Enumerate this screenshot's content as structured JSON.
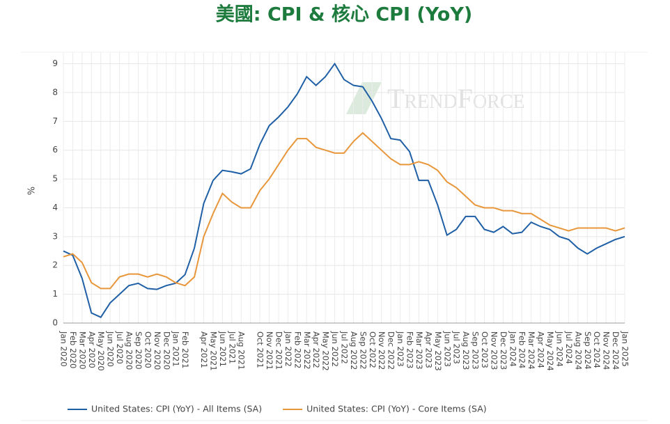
{
  "chart_data": {
    "type": "line",
    "title": "美國: CPI & 核心 CPI (YoY)",
    "y_label": "%",
    "watermark": "TrendForce",
    "categories": [
      "Jan 2020",
      "Feb 2020",
      "Mar 2020",
      "Apr 2020",
      "May 2020",
      "Jun 2020",
      "Jul 2020",
      "Aug 2020",
      "Sep 2020",
      "Oct 2020",
      "Nov 2020",
      "Dec 2020",
      "Jan 2021",
      "Feb 2021",
      null,
      "Apr 2021",
      "May 2021",
      "Jun 2021",
      "Jul 2021",
      "Aug 2021",
      null,
      "Oct 2021",
      "Nov 2021",
      "Dec 2021",
      "Jan 2022",
      "Feb 2022",
      "Mar 2022",
      "Apr 2022",
      "May 2022",
      "Jun 2022",
      "Jul 2022",
      "Aug 2022",
      "Sep 2022",
      "Oct 2022",
      "Nov 2022",
      "Dec 2022",
      "Jan 2023",
      "Feb 2023",
      "Mar 2023",
      "Apr 2023",
      "May 2023",
      "Jun 2023",
      "Jul 2023",
      "Aug 2023",
      "Sep 2023",
      "Oct 2023",
      "Nov 2023",
      "Dec 2023",
      "Jan 2024",
      "Feb 2024",
      "Mar 2024",
      "Apr 2024",
      "May 2024",
      "Jun 2024",
      "Jul 2024",
      "Aug 2024",
      "Sep 2024",
      "Oct 2024",
      "Nov 2024",
      "Dec 2024",
      "Jan 2025"
    ],
    "series": [
      {
        "name": "United States: CPI (YoY) - All Items (SA)",
        "color": "#1f5fa6",
        "values": [
          2.5,
          2.35,
          1.55,
          0.35,
          0.2,
          0.7,
          1.0,
          1.3,
          1.38,
          1.2,
          1.17,
          1.3,
          1.38,
          1.68,
          2.6,
          4.15,
          4.95,
          5.3,
          5.25,
          5.18,
          5.35,
          6.2,
          6.85,
          7.15,
          7.5,
          7.95,
          8.55,
          8.25,
          8.55,
          9.0,
          8.45,
          8.25,
          8.2,
          7.7,
          7.1,
          6.4,
          6.35,
          5.95,
          4.95,
          4.95,
          4.1,
          3.05,
          3.25,
          3.7,
          3.7,
          3.25,
          3.15,
          3.35,
          3.1,
          3.15,
          3.5,
          3.35,
          3.25,
          3.0,
          2.9,
          2.6,
          2.4,
          2.6,
          2.75,
          2.9,
          3.0
        ]
      },
      {
        "name": "United States: CPI (YoY) - Core Items (SA)",
        "color": "#e8963a",
        "values": [
          2.3,
          2.4,
          2.1,
          1.4,
          1.2,
          1.2,
          1.6,
          1.7,
          1.7,
          1.6,
          1.7,
          1.6,
          1.4,
          1.3,
          1.6,
          3.0,
          3.8,
          4.5,
          4.2,
          4.0,
          4.0,
          4.6,
          5.0,
          5.5,
          6.0,
          6.4,
          6.4,
          6.1,
          6.0,
          5.9,
          5.9,
          6.3,
          6.6,
          6.3,
          6.0,
          5.7,
          5.5,
          5.5,
          5.6,
          5.5,
          5.3,
          4.9,
          4.7,
          4.4,
          4.1,
          4.0,
          4.0,
          3.9,
          3.9,
          3.8,
          3.8,
          3.6,
          3.4,
          3.3,
          3.2,
          3.3,
          3.3,
          3.3,
          3.3,
          3.2,
          3.3
        ]
      }
    ],
    "ylim": [
      0,
      9.4
    ],
    "yticks": [
      0,
      1,
      2,
      3,
      4,
      5,
      6,
      7,
      8,
      9
    ],
    "grid": true
  }
}
